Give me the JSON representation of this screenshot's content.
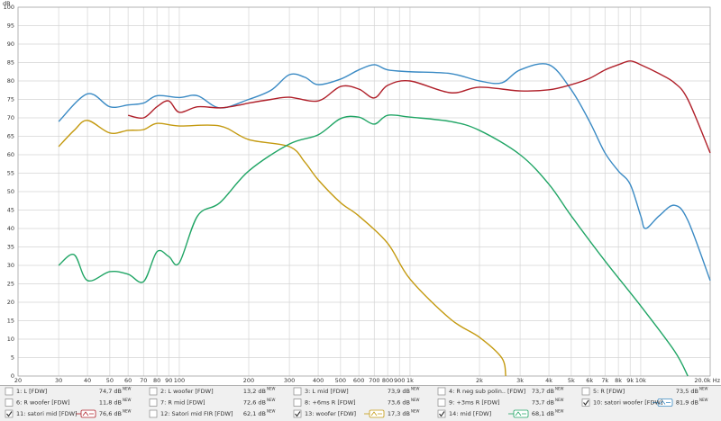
{
  "chart_data": {
    "type": "line",
    "ylabel": "dB",
    "log_x": true,
    "grid": true,
    "xlim": [
      20,
      20000
    ],
    "ylim": [
      0,
      100
    ],
    "xticks": [
      20,
      30,
      40,
      50,
      60,
      70,
      80,
      90,
      100,
      200,
      300,
      400,
      500,
      600,
      700,
      800,
      900,
      {
        "value": 1000,
        "label": "1k"
      },
      {
        "value": 2000,
        "label": "2k"
      },
      {
        "value": 3000,
        "label": "3k"
      },
      {
        "value": 4000,
        "label": "4k"
      },
      {
        "value": 5000,
        "label": "5k"
      },
      {
        "value": 6000,
        "label": "6k"
      },
      {
        "value": 7000,
        "label": "7k"
      },
      {
        "value": 8000,
        "label": "8k"
      },
      {
        "value": 9000,
        "label": "9k"
      },
      {
        "value": 10000,
        "label": "10k"
      },
      {
        "value": 20000,
        "label": "20.0k Hz"
      }
    ],
    "yticks": [
      0,
      5,
      10,
      15,
      20,
      25,
      30,
      35,
      40,
      45,
      50,
      55,
      60,
      65,
      70,
      75,
      80,
      85,
      90,
      95,
      100
    ],
    "series": [
      {
        "color": "#3a8ac4",
        "x": [
          30,
          40,
          50,
          60,
          70,
          80,
          100,
          120,
          150,
          200,
          250,
          300,
          350,
          400,
          500,
          600,
          700,
          800,
          1000,
          1500,
          2000,
          2500,
          3000,
          4000,
          5000,
          6000,
          7000,
          8000,
          9000,
          10000,
          10500,
          12000,
          14000,
          16000,
          20000
        ],
        "values": [
          69,
          76.5,
          73,
          73.5,
          74,
          76,
          75.5,
          76,
          72.7,
          75,
          77.5,
          81.7,
          81,
          79,
          80.5,
          83,
          84.4,
          83,
          82.5,
          82,
          80,
          79.5,
          83,
          84.4,
          77.6,
          69,
          60.5,
          55.6,
          52,
          43.4,
          40,
          43.4,
          46.3,
          42.2,
          25.9
        ]
      },
      {
        "color": "#b0202a",
        "x": [
          60,
          70,
          80,
          90,
          100,
          120,
          150,
          180,
          200,
          250,
          300,
          400,
          500,
          600,
          700,
          800,
          1000,
          1500,
          2000,
          3000,
          4000,
          5000,
          6000,
          7000,
          8000,
          9000,
          10000,
          12000,
          14000,
          16000,
          20000
        ],
        "values": [
          70.7,
          70,
          73,
          74.6,
          71.5,
          73,
          72.7,
          73.4,
          74,
          75,
          75.6,
          74.6,
          78.5,
          77.8,
          75.4,
          78.8,
          80,
          76.8,
          78.3,
          77.3,
          77.6,
          79,
          80.7,
          83,
          84.4,
          85.4,
          84.4,
          82,
          79.5,
          75,
          60.5
        ]
      },
      {
        "color": "#c49a10",
        "x": [
          30,
          35,
          40,
          50,
          60,
          70,
          80,
          100,
          150,
          200,
          300,
          350,
          400,
          500,
          600,
          800,
          1000,
          1500,
          2000,
          2500,
          2600
        ],
        "values": [
          62.2,
          66.6,
          69.3,
          65.9,
          66.6,
          66.8,
          68.5,
          67.8,
          67.8,
          64.1,
          62.2,
          58,
          53.2,
          47,
          43.4,
          36,
          26.3,
          15.4,
          10.5,
          4.9,
          0
        ]
      },
      {
        "color": "#20a565",
        "x": [
          30,
          35,
          40,
          50,
          60,
          70,
          80,
          90,
          100,
          120,
          150,
          200,
          300,
          400,
          500,
          600,
          700,
          800,
          1000,
          1500,
          2000,
          3000,
          4000,
          5000,
          7000,
          10000,
          14000,
          16000
        ],
        "values": [
          30,
          32.9,
          25.9,
          28.3,
          27.6,
          25.6,
          33.7,
          32.4,
          30.7,
          43.4,
          47,
          55.6,
          62.9,
          65.4,
          69.8,
          70.2,
          68.3,
          70.7,
          70.2,
          69,
          66.6,
          60,
          52,
          43.4,
          31.2,
          19,
          6.8,
          0
        ]
      }
    ]
  },
  "measurements": [
    {
      "label": "1: L [FDW]",
      "value": "74,7 dB",
      "tag": "NEW",
      "color": "#c03030",
      "checked": false
    },
    {
      "label": "2: L woofer [FDW]",
      "value": "13,2 dB",
      "tag": "NEW",
      "color": "#30a050",
      "checked": false
    },
    {
      "label": "3: L mid [FDW]",
      "value": "73,9 dB",
      "tag": "NEW",
      "color": "#5050c0",
      "checked": false
    },
    {
      "label": "4: R neg sub polin.. [FDW]",
      "value": "73,7 dB",
      "tag": "NEW",
      "color": "#90a020",
      "checked": false
    },
    {
      "label": "5: R [FDW]",
      "value": "73,5 dB",
      "tag": "NEW",
      "color": "#7050c0",
      "checked": false
    },
    {
      "label": "6: R woofer [FDW]",
      "value": "11,8 dB",
      "tag": "NEW",
      "color": "#c08020",
      "checked": false
    },
    {
      "label": "7: R mid [FDW]",
      "value": "72,6 dB",
      "tag": "NEW",
      "color": "#20a070",
      "checked": false
    },
    {
      "label": "8: +6ms R [FDW]",
      "value": "73,6 dB",
      "tag": "NEW",
      "color": "#8040c0",
      "checked": false
    },
    {
      "label": "9: +3ms R [FDW]",
      "value": "73,7 dB",
      "tag": "NEW",
      "color": "#c040a0",
      "checked": false
    },
    {
      "label": "10: satori woofer [FDW]",
      "value": "81,9 dB",
      "tag": "NEW",
      "color": "#3a8ac4",
      "checked": true
    },
    {
      "label": "11: satori mid [FDW]",
      "value": "76,6 dB",
      "tag": "NEW",
      "color": "#b0202a",
      "checked": true
    },
    {
      "label": "12: Satori mid FIR [FDW]",
      "value": "62,1 dB",
      "tag": "NEW",
      "color": "#a040c0",
      "checked": false
    },
    {
      "label": "13: woofer [FDW]",
      "value": "17,3 dB",
      "tag": "NEW",
      "color": "#c49a10",
      "checked": true
    },
    {
      "label": "14: mid [FDW]",
      "value": "68,1 dB",
      "tag": "NEW",
      "color": "#20a565",
      "checked": true
    }
  ]
}
